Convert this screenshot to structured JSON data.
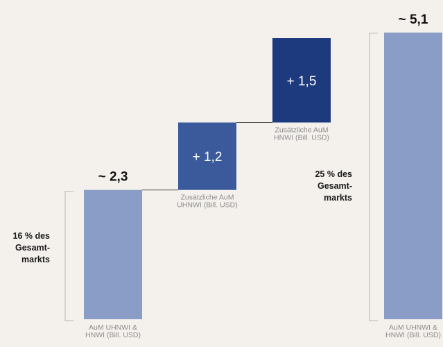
{
  "chart_data": {
    "type": "bar",
    "subtype": "waterfall",
    "ylim": [
      0,
      5.1
    ],
    "grid": false,
    "legend": "none",
    "bars": [
      {
        "kind": "total",
        "value": 2.3,
        "start": 0,
        "value_label": "~ 2,3",
        "caption": [
          "AuM UHNWI &",
          "HNWI (Bill. USD)"
        ],
        "color": "#8a9dc6"
      },
      {
        "kind": "delta",
        "value": 1.2,
        "start": 2.3,
        "value_label": "+ 1,2",
        "caption": [
          "Zusätzliche AuM",
          "UHNWI (Bill. USD)"
        ],
        "color": "#3a5a9b"
      },
      {
        "kind": "delta",
        "value": 1.5,
        "start": 3.5,
        "value_label": "+ 1,5",
        "caption": [
          "Zusätzliche AuM",
          "HNWI (Bill. USD)"
        ],
        "color": "#1d3a7e"
      },
      {
        "kind": "total",
        "value": 5.1,
        "start": 0,
        "value_label": "~ 5,1",
        "caption": [
          "AuM UHNWI &",
          "HNWI (Bill. USD)"
        ],
        "color": "#8a9dc6"
      }
    ],
    "annotations": [
      {
        "bar": 0,
        "lines": [
          "16 % des",
          "Gesamt-",
          "markts"
        ]
      },
      {
        "bar": 3,
        "lines": [
          "25 % des",
          "Gesamt-",
          "markts"
        ]
      }
    ]
  },
  "colors": {
    "background": "#f4f1ed",
    "bracket": "#b9b5b0",
    "connector": "#555555",
    "value_text": "#111111",
    "inside_text": "#ffffff",
    "caption_text": "#8c8c8c",
    "annotation_text": "#1a1a1a"
  }
}
